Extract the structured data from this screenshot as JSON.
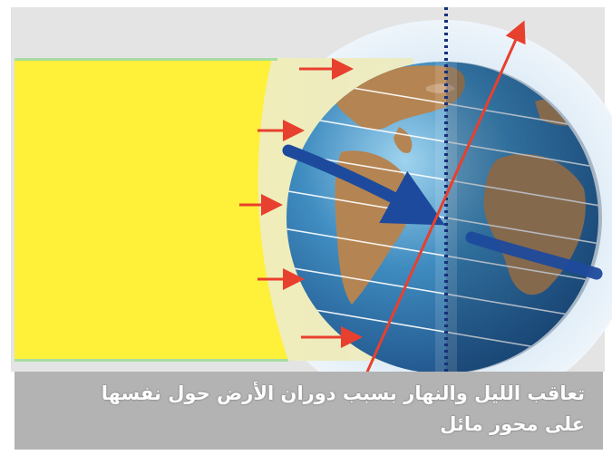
{
  "diagram": {
    "caption_line_1": "تعاقب الليل والنهار بسبب دوران الأرض حول نفسها",
    "caption_line_2": "على محور مائل"
  },
  "colors": {
    "sunlight": "#ffee33",
    "light_band": "#f1efb4",
    "halo": "#dcecf6",
    "ocean": "#3a86b8",
    "land": "#b48452",
    "arrow": "#e8402e",
    "rotation_arrow": "#1d4a9c",
    "caption_bg": "#b3b3b3"
  }
}
